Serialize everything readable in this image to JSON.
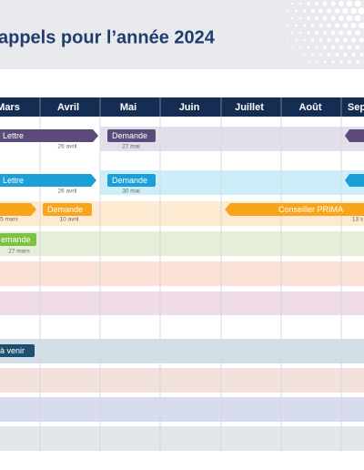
{
  "header": {
    "title": "appels pour l’année 2024"
  },
  "months": [
    "Mars",
    "Avril",
    "Mai",
    "Juin",
    "Juillet",
    "Août",
    "Sep"
  ],
  "rows": [
    {
      "tags": [
        {
          "label": "Lettre",
          "date": "26 avril"
        },
        {
          "label": "Demande",
          "date": "27 mai"
        }
      ]
    },
    {
      "tags": [
        {
          "label": "Lettre",
          "date": "26 avril"
        },
        {
          "label": "Demande",
          "date": "30 mai"
        }
      ]
    },
    {
      "tags": [
        {
          "date": "5 mars"
        },
        {
          "label": "Demande",
          "date": "10 avril"
        },
        {
          "label": "Conseiller PRIMA",
          "date": "13 s"
        }
      ]
    },
    {
      "tags": [
        {
          "label": "emande",
          "date": "27 mars"
        }
      ]
    },
    {
      "tags": [
        {
          "label": "à venir"
        }
      ]
    }
  ]
}
